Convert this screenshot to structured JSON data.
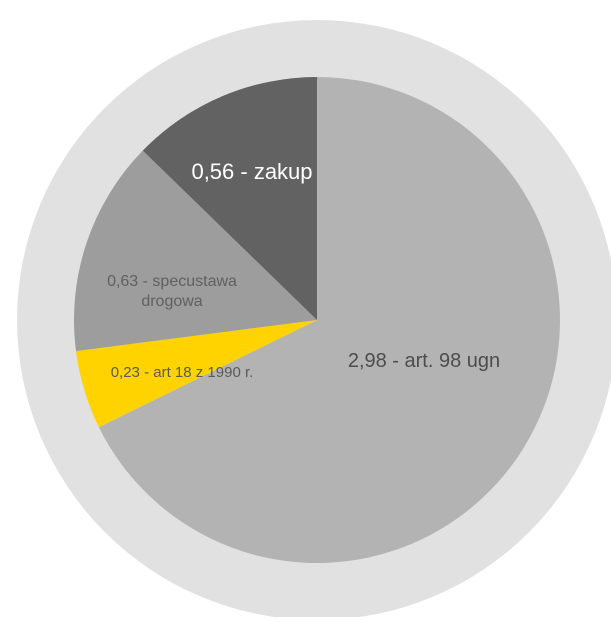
{
  "chart_data": {
    "type": "pie",
    "start": "12 o'clock",
    "direction": "clockwise",
    "slices": [
      {
        "label": "2,98 - art. 98 ugn",
        "value": 2.98,
        "color": "#b3b3b3",
        "text_color": "#4d4d4d"
      },
      {
        "label": "0,23 - art 18 z 1990 r.",
        "value": 0.23,
        "color": "#ffd300",
        "text_color": "#5a5a5a"
      },
      {
        "label": "0,63 - specustawa drogowa",
        "value": 0.63,
        "color": "#9d9d9d",
        "text_color": "#606060",
        "label_lines": [
          "0,63 - specustawa",
          "drogowa"
        ]
      },
      {
        "label": "0,56 - zakup",
        "value": 0.56,
        "color": "#626262",
        "text_color": "#ffffff"
      }
    ],
    "outer_ring_color": "#e1e1e1"
  }
}
